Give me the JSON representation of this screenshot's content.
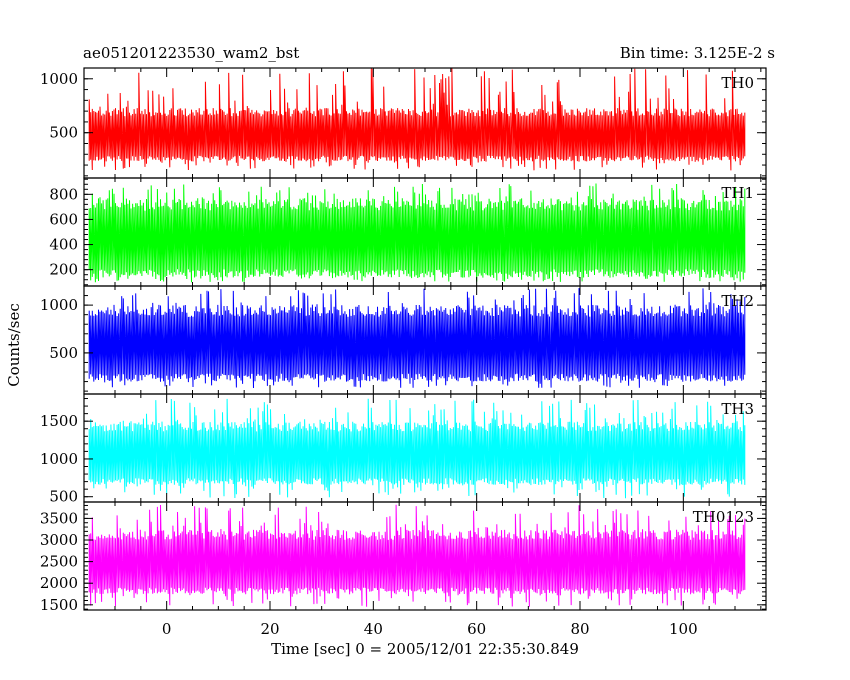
{
  "chart_data": {
    "type": "line",
    "title": "ae051201223530_wam2_bst",
    "subtitle": "Bin time: 3.125E-2 s",
    "xlabel": "Time [sec] 0 = 2005/12/01 22:35:30.849",
    "ylabel": "Counts/sec",
    "xlim": [
      -16,
      116
    ],
    "x_ticks": [
      0,
      20,
      40,
      60,
      80,
      100
    ],
    "x": {
      "start": -15,
      "end": 112,
      "step": 0.03125
    },
    "grid": false,
    "legend": "none",
    "series": [
      {
        "name": "TH0",
        "color": "#ff0000",
        "ylim": [
          80,
          1100
        ],
        "y_ticks": [
          500,
          1000
        ],
        "base_low": 260,
        "base_high": 690,
        "spike_low": 150,
        "spike_high": 1100
      },
      {
        "name": "TH1",
        "color": "#00ff00",
        "ylim": [
          70,
          930
        ],
        "y_ticks": [
          200,
          400,
          600,
          800
        ],
        "base_low": 170,
        "base_high": 720,
        "spike_low": 100,
        "spike_high": 890
      },
      {
        "name": "TH2",
        "color": "#0000ff",
        "ylim": [
          70,
          1200
        ],
        "y_ticks": [
          500,
          1000
        ],
        "base_low": 240,
        "base_high": 940,
        "spike_low": 130,
        "spike_high": 1180
      },
      {
        "name": "TH3",
        "color": "#00ffff",
        "ylim": [
          430,
          1860
        ],
        "y_ticks": [
          500,
          1000,
          1500
        ],
        "base_low": 700,
        "base_high": 1430,
        "spike_low": 480,
        "spike_high": 1800
      },
      {
        "name": "TH0123",
        "color": "#ff00ff",
        "ylim": [
          1380,
          3880
        ],
        "y_ticks": [
          1500,
          2000,
          2500,
          3000,
          3500
        ],
        "base_low": 1820,
        "base_high": 3120,
        "spike_low": 1450,
        "spike_high": 3820
      }
    ]
  }
}
